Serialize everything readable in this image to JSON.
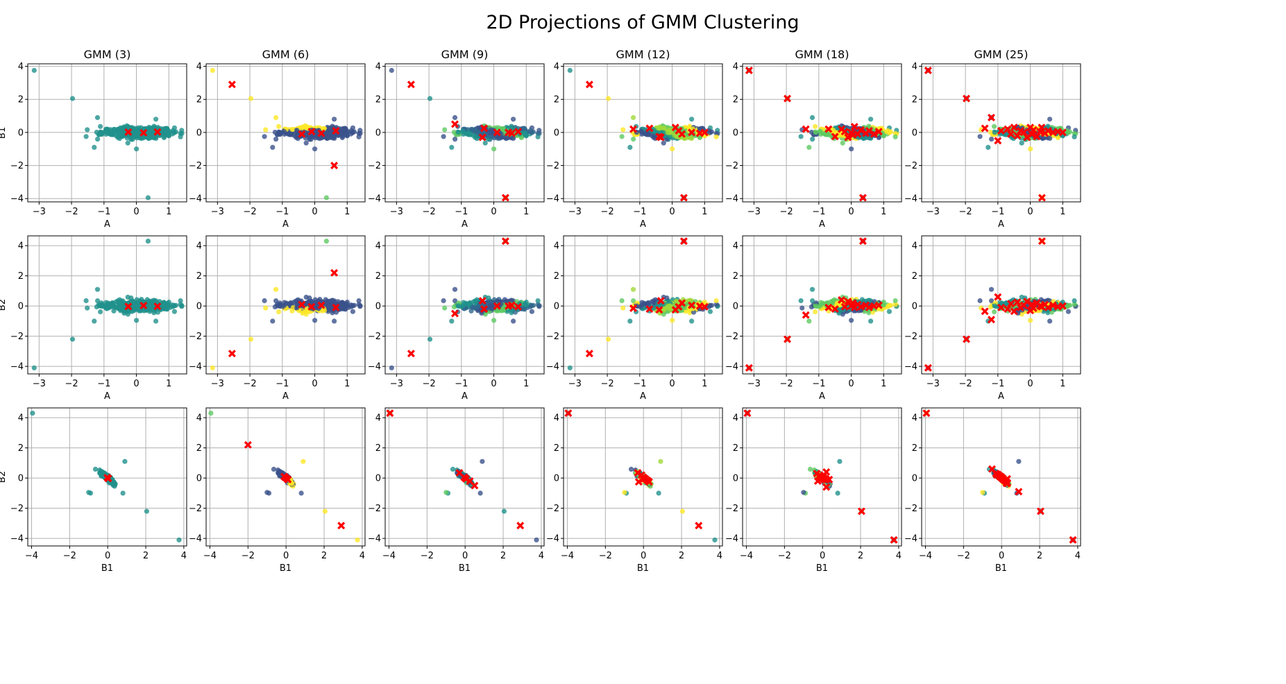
{
  "chart_data": {
    "type": "scatter",
    "title": "2D Projections of GMM Clustering",
    "colors": {
      "centroid": "#ff0000",
      "grid": "#b0b0b0",
      "k3": "#21918c",
      "k6": [
        "#3b528b",
        "#fde725",
        "#5ec962",
        "#21918c"
      ],
      "k9": [
        "#3b528b",
        "#5ec962",
        "#21918c",
        "#31688e"
      ],
      "k12": [
        "#5ec962",
        "#fde725",
        "#3b528b",
        "#21918c",
        "#a0da39"
      ],
      "k18": [
        "#21918c",
        "#3b528b",
        "#5ec962",
        "#fde725"
      ],
      "k25": [
        "#3b528b",
        "#fde725",
        "#21918c",
        "#5ec962"
      ]
    },
    "columns": [
      {
        "title": "GMM (3)",
        "k": 3
      },
      {
        "title": "GMM (6)",
        "k": 6
      },
      {
        "title": "GMM (9)",
        "k": 9
      },
      {
        "title": "GMM (12)",
        "k": 12
      },
      {
        "title": "GMM (18)",
        "k": 18
      },
      {
        "title": "GMM (25)",
        "k": 25
      }
    ],
    "rows": [
      {
        "xlabel": "A",
        "ylabel": "B1",
        "xlim": [
          -3.35,
          1.55
        ],
        "ylim": [
          -4.2,
          4.15
        ],
        "xticks": [
          -3,
          -2,
          -1,
          0,
          1
        ],
        "yticks": [
          -4,
          -2,
          0,
          2,
          4
        ]
      },
      {
        "xlabel": "A",
        "ylabel": "B2",
        "xlim": [
          -3.35,
          1.55
        ],
        "ylim": [
          -4.5,
          4.65
        ],
        "xticks": [
          -3,
          -2,
          -1,
          0,
          1
        ],
        "yticks": [
          -4,
          -2,
          0,
          2,
          4
        ]
      },
      {
        "xlabel": "B1",
        "ylabel": "B2",
        "xlim": [
          -4.2,
          4.15
        ],
        "ylim": [
          -4.5,
          4.65
        ],
        "xticks": [
          -4,
          -2,
          0,
          2,
          4
        ],
        "yticks": [
          -4,
          -2,
          0,
          2,
          4
        ]
      }
    ],
    "outliers": [
      {
        "A": -3.15,
        "B1": 3.75,
        "B2": -4.1
      },
      {
        "A": -1.97,
        "B1": 2.05,
        "B2": -2.2
      },
      {
        "A": 0.36,
        "B1": -3.95,
        "B2": 4.3
      },
      {
        "A": -1.2,
        "B1": 0.9,
        "B2": 1.1
      },
      {
        "A": -1.3,
        "B1": -0.9,
        "B2": -1.0
      },
      {
        "A": 0.0,
        "B1": -1.0,
        "B2": -0.95
      },
      {
        "A": 0.6,
        "B1": 0.8,
        "B2": -1.0
      }
    ],
    "centroids": {
      "3": [
        {
          "A": -0.25,
          "B1": 0.02,
          "B2": -0.03
        },
        {
          "A": 0.22,
          "B1": -0.02,
          "B2": 0.03
        },
        {
          "A": 0.65,
          "B1": 0.03,
          "B2": -0.02
        }
      ],
      "6": [
        {
          "A": -2.55,
          "B1": 2.9,
          "B2": -3.15
        },
        {
          "A": 0.6,
          "B1": -2.0,
          "B2": 2.2
        },
        {
          "A": -0.1,
          "B1": 0.05,
          "B2": -0.05
        },
        {
          "A": 0.2,
          "B1": -0.05,
          "B2": 0.05
        },
        {
          "A": 0.65,
          "B1": 0.1,
          "B2": -0.1
        },
        {
          "A": -0.4,
          "B1": -0.1,
          "B2": 0.1
        }
      ],
      "9": [
        {
          "A": -2.55,
          "B1": 2.9,
          "B2": -3.15
        },
        {
          "A": 0.36,
          "B1": -3.95,
          "B2": 4.3
        },
        {
          "A": -1.2,
          "B1": 0.5,
          "B2": -0.5
        },
        {
          "A": -0.35,
          "B1": -0.3,
          "B2": 0.35
        },
        {
          "A": -0.3,
          "B1": 0.25,
          "B2": -0.2
        },
        {
          "A": 0.1,
          "B1": 0.0,
          "B2": 0.0
        },
        {
          "A": 0.45,
          "B1": 0.0,
          "B2": 0.0
        },
        {
          "A": 0.75,
          "B1": 0.05,
          "B2": -0.05
        },
        {
          "A": 0.55,
          "B1": -0.05,
          "B2": 0.05
        }
      ],
      "12": [
        {
          "A": -2.55,
          "B1": 2.9,
          "B2": -3.15
        },
        {
          "A": 0.36,
          "B1": -3.95,
          "B2": 4.3
        },
        {
          "A": -1.2,
          "B1": 0.2,
          "B2": -0.15
        },
        {
          "A": -0.7,
          "B1": 0.25,
          "B2": -0.2
        },
        {
          "A": -0.35,
          "B1": -0.3,
          "B2": 0.35
        },
        {
          "A": -0.4,
          "B1": -0.25,
          "B2": -0.25
        },
        {
          "A": 0.1,
          "B1": 0.3,
          "B2": -0.25
        },
        {
          "A": 0.3,
          "B1": -0.1,
          "B2": 0.2
        },
        {
          "A": 0.2,
          "B1": 0.1,
          "B2": -0.05
        },
        {
          "A": 0.6,
          "B1": 0.0,
          "B2": 0.05
        },
        {
          "A": 0.85,
          "B1": -0.05,
          "B2": 0.0
        },
        {
          "A": 1.0,
          "B1": 0.0,
          "B2": -0.05
        }
      ],
      "18": [
        {
          "A": -3.15,
          "B1": 3.75,
          "B2": -4.1
        },
        {
          "A": -1.97,
          "B1": 2.05,
          "B2": -2.2
        },
        {
          "A": 0.36,
          "B1": -3.95,
          "B2": 4.3
        },
        {
          "A": -1.4,
          "B1": 0.2,
          "B2": -0.6
        },
        {
          "A": -0.7,
          "B1": 0.2,
          "B2": -0.1
        },
        {
          "A": -0.5,
          "B1": -0.25,
          "B2": -0.2
        },
        {
          "A": -0.3,
          "B1": 0.2,
          "B2": 0.4
        },
        {
          "A": -0.1,
          "B1": -0.3,
          "B2": 0.3
        },
        {
          "A": 0.0,
          "B1": 0.0,
          "B2": 0.0
        },
        {
          "A": 0.1,
          "B1": 0.35,
          "B2": -0.1
        },
        {
          "A": 0.2,
          "B1": -0.1,
          "B2": 0.1
        },
        {
          "A": 0.3,
          "B1": 0.15,
          "B2": -0.05
        },
        {
          "A": 0.45,
          "B1": -0.05,
          "B2": 0.05
        },
        {
          "A": 0.55,
          "B1": 0.1,
          "B2": -0.1
        },
        {
          "A": 0.7,
          "B1": -0.1,
          "B2": 0.0
        },
        {
          "A": 0.85,
          "B1": 0.05,
          "B2": 0.05
        },
        {
          "A": -0.2,
          "B1": 0.05,
          "B2": -0.05
        },
        {
          "A": 0.05,
          "B1": -0.15,
          "B2": 0.2
        }
      ],
      "25": [
        {
          "A": -3.15,
          "B1": 3.75,
          "B2": -4.1
        },
        {
          "A": -1.97,
          "B1": 2.05,
          "B2": -2.2
        },
        {
          "A": 0.36,
          "B1": -3.95,
          "B2": 4.3
        },
        {
          "A": -1.2,
          "B1": 0.9,
          "B2": -0.9
        },
        {
          "A": -1.0,
          "B1": -0.5,
          "B2": 0.6
        },
        {
          "A": -1.4,
          "B1": 0.25,
          "B2": -0.35
        },
        {
          "A": -0.9,
          "B1": 0.1,
          "B2": -0.1
        },
        {
          "A": -0.7,
          "B1": 0.2,
          "B2": -0.2
        },
        {
          "A": -0.6,
          "B1": -0.1,
          "B2": 0.15
        },
        {
          "A": -0.5,
          "B1": 0.3,
          "B2": -0.35
        },
        {
          "A": -0.4,
          "B1": -0.2,
          "B2": 0.25
        },
        {
          "A": -0.3,
          "B1": 0.1,
          "B2": -0.1
        },
        {
          "A": -0.2,
          "B1": 0.0,
          "B2": 0.05
        },
        {
          "A": -0.1,
          "B1": -0.3,
          "B2": 0.3
        },
        {
          "A": 0.0,
          "B1": 0.3,
          "B2": -0.3
        },
        {
          "A": 0.05,
          "B1": -0.1,
          "B2": 0.1
        },
        {
          "A": 0.1,
          "B1": 0.15,
          "B2": -0.15
        },
        {
          "A": 0.2,
          "B1": -0.25,
          "B2": 0.2
        },
        {
          "A": 0.3,
          "B1": 0.05,
          "B2": 0.0
        },
        {
          "A": 0.35,
          "B1": 0.3,
          "B2": -0.05
        },
        {
          "A": 0.45,
          "B1": -0.05,
          "B2": 0.1
        },
        {
          "A": 0.55,
          "B1": 0.1,
          "B2": -0.1
        },
        {
          "A": 0.7,
          "B1": 0.0,
          "B2": 0.05
        },
        {
          "A": 0.85,
          "B1": 0.05,
          "B2": -0.05
        },
        {
          "A": 1.0,
          "B1": 0.0,
          "B2": 0.0
        }
      ]
    }
  }
}
